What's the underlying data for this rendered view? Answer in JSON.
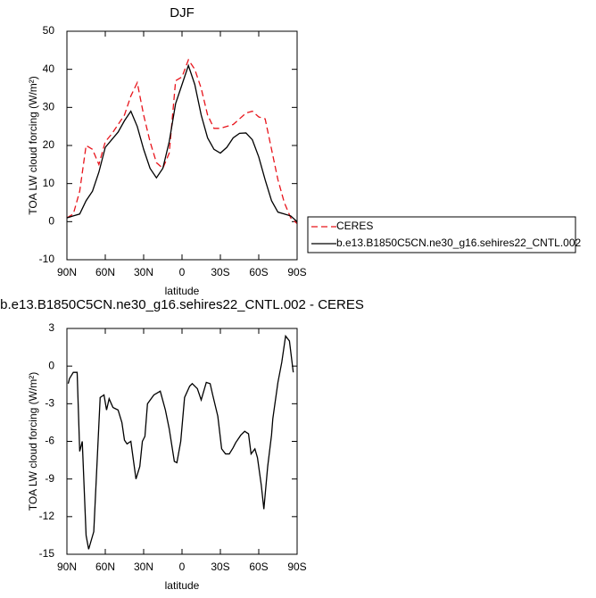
{
  "chart_data": [
    {
      "type": "line",
      "title": "DJF",
      "xlabel": "latitude",
      "ylabel": "TOA LW cloud forcing (W/m²)",
      "x": [
        90,
        85,
        80,
        75,
        70,
        65,
        60,
        55,
        50,
        45,
        40,
        35,
        30,
        25,
        20,
        15,
        10,
        5,
        0,
        -5,
        -10,
        -15,
        -20,
        -25,
        -30,
        -35,
        -40,
        -45,
        -50,
        -55,
        -60,
        -65,
        -70,
        -75,
        -80,
        -85,
        -90
      ],
      "series": [
        {
          "name": "CERES",
          "color": "#e8141b",
          "dashed": true,
          "values": [
            1,
            2,
            8,
            20,
            19,
            15,
            21,
            23,
            25.5,
            28,
            33,
            36.5,
            28,
            21,
            15.5,
            14,
            18,
            37,
            38,
            42.5,
            40,
            35,
            28,
            24.5,
            24.5,
            25,
            25.5,
            27,
            28.5,
            29,
            27.5,
            27,
            19,
            11,
            5,
            1,
            -0.5
          ]
        },
        {
          "name": "b.e13.B1850C5CN.ne30_g16.sehires22_CNTL.002",
          "color": "#000000",
          "dashed": false,
          "values": [
            1,
            1.5,
            2,
            5.5,
            8,
            13,
            19.5,
            21.5,
            23.5,
            26.5,
            29,
            25,
            19,
            14,
            11.5,
            14,
            21,
            31,
            36,
            41,
            36,
            28,
            22,
            19,
            18,
            19.5,
            22,
            23.2,
            23.3,
            21.5,
            17,
            11,
            5.5,
            2.5,
            2,
            1.5,
            0
          ]
        }
      ],
      "xlim": [
        90,
        -90
      ],
      "xticks": [
        {
          "value": 90,
          "label": "90N"
        },
        {
          "value": 60,
          "label": "60N"
        },
        {
          "value": 30,
          "label": "30N"
        },
        0,
        {
          "value": -30,
          "label": "30S"
        },
        {
          "value": -60,
          "label": "60S"
        },
        {
          "value": -90,
          "label": "90S"
        }
      ],
      "ylim": [
        -10,
        50
      ],
      "yticks": [
        -10,
        0,
        10,
        20,
        30,
        40,
        50
      ],
      "legend": "outside-right"
    },
    {
      "type": "line",
      "title": "b.e13.B1850C5CN.ne30_g16.sehires22_CNTL.002 - CERES",
      "xlabel": "latitude",
      "ylabel": "TOA LW cloud forcing (W/m²)",
      "x": [
        89,
        88,
        85,
        82,
        80,
        78,
        75,
        73,
        69,
        64,
        61,
        59,
        57,
        54,
        50,
        47,
        45,
        43,
        40,
        36,
        33,
        31,
        29,
        27,
        22,
        17,
        13,
        10,
        6,
        4,
        1,
        -2,
        -6,
        -8,
        -12,
        -15,
        -19,
        -22,
        -24,
        -28,
        -31,
        -34,
        -37,
        -40,
        -42,
        -46,
        -49,
        -52,
        -54,
        -57,
        -59,
        -62,
        -64,
        -67,
        -70,
        -71,
        -75,
        -78,
        -81,
        -84,
        -87
      ],
      "color": "#000000",
      "values": [
        -1.4,
        -1,
        -0.5,
        -0.5,
        -6.8,
        -6,
        -13.5,
        -14.6,
        -13.2,
        -2.5,
        -2.3,
        -3.5,
        -2.6,
        -3.3,
        -3.5,
        -4.5,
        -5.9,
        -6.2,
        -6,
        -9,
        -8,
        -6,
        -5.6,
        -3,
        -2.3,
        -2,
        -3.5,
        -5,
        -7.6,
        -7.7,
        -6,
        -2.5,
        -1.6,
        -1.4,
        -1.8,
        -2.7,
        -1.3,
        -1.4,
        -2.3,
        -4,
        -6.6,
        -7,
        -7,
        -6.5,
        -6.1,
        -5.5,
        -5.2,
        -5.4,
        -7,
        -6.6,
        -7.3,
        -9.5,
        -11.4,
        -8,
        -5.5,
        -4.2,
        -1.3,
        0.3,
        2.4,
        2,
        -0.5
      ],
      "xlim": [
        90,
        -90
      ],
      "xticks": [
        {
          "value": 90,
          "label": "90N"
        },
        {
          "value": 60,
          "label": "60N"
        },
        {
          "value": 30,
          "label": "30N"
        },
        0,
        {
          "value": -30,
          "label": "30S"
        },
        {
          "value": -60,
          "label": "60S"
        },
        {
          "value": -90,
          "label": "90S"
        }
      ],
      "ylim": [
        -15,
        3
      ],
      "yticks": [
        -15,
        -12,
        -9,
        -6,
        -3,
        0,
        3
      ]
    }
  ]
}
